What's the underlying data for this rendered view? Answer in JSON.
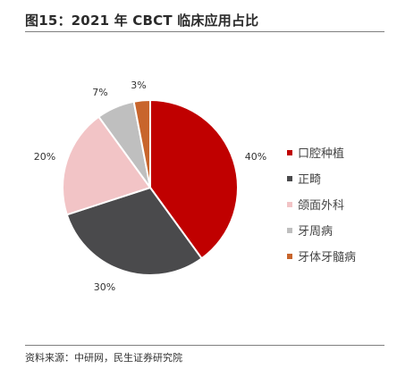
{
  "header": {
    "title": "图15：2021 年 CBCT 临床应用占比"
  },
  "footer": {
    "source": "资料来源：中研网，民生证券研究院"
  },
  "chart_data": {
    "type": "pie",
    "title": "图15：2021 年 CBCT 临床应用占比",
    "legend_position": "right",
    "slices": [
      {
        "label": "口腔种植",
        "value": 40,
        "display": "40%",
        "color": "#c00000"
      },
      {
        "label": "正畸",
        "value": 30,
        "display": "30%",
        "color": "#4a4a4c"
      },
      {
        "label": "颌面外科",
        "value": 20,
        "display": "20%",
        "color": "#f2c4c6"
      },
      {
        "label": "牙周病",
        "value": 7,
        "display": "7%",
        "color": "#bfbfbf"
      },
      {
        "label": "牙体牙髓病",
        "value": 3,
        "display": "3%",
        "color": "#c8652c"
      }
    ]
  }
}
